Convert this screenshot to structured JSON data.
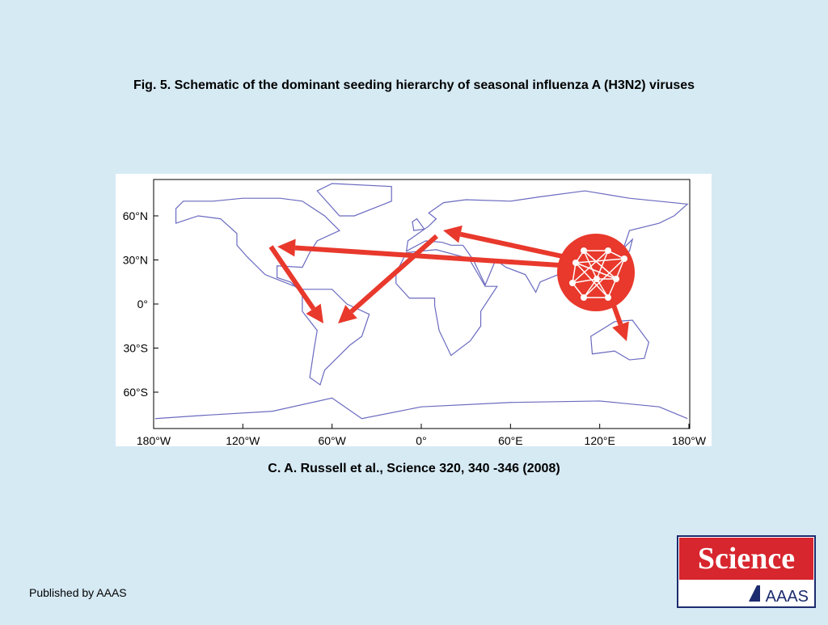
{
  "title": "Fig. 5. Schematic of the dominant seeding hierarchy of seasonal influenza A (H3N2) viruses",
  "map": {
    "lat_labels": [
      "60°N",
      "30°N",
      "0°",
      "30°S",
      "60°S"
    ],
    "lon_labels": [
      "180°W",
      "120°W",
      "60°W",
      "0°",
      "60°E",
      "120°E",
      "180°W"
    ]
  },
  "citation": "C. A.  Russell et al.,  Science  320, 340 -346 (2008)",
  "footer": "Published by AAAS",
  "logo": {
    "name": "Science",
    "publisher": "AAAS"
  }
}
